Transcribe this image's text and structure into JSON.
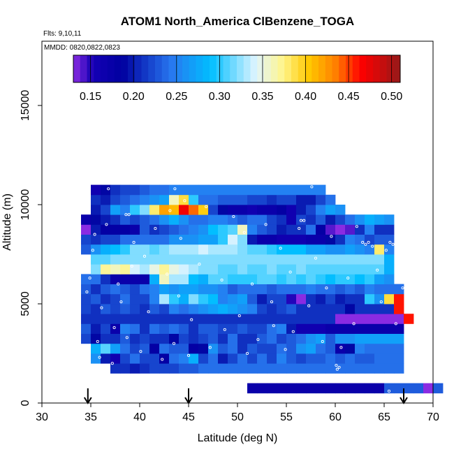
{
  "chart_data": {
    "type": "heatmap",
    "title": "ATOM1 North_America ClBenzene_TOGA",
    "flights_label": "Flts: 9,10,11",
    "dates_label": "MMDD: 0820,0822,0823",
    "xlabel": "Latitude (deg N)",
    "ylabel": "Altitude (m)",
    "xlim": [
      30,
      70
    ],
    "ylim": [
      0,
      18000
    ],
    "x_ticks": [
      "30",
      "35",
      "40",
      "45",
      "50",
      "55",
      "60",
      "65",
      "70"
    ],
    "y_ticks": [
      "0",
      "5000",
      "10000",
      "15000"
    ],
    "colorbar": {
      "range": [
        0.13,
        0.51
      ],
      "ticks": [
        "0.15",
        "0.20",
        "0.25",
        "0.30",
        "0.35",
        "0.40",
        "0.45",
        "0.50"
      ]
    },
    "grid": false,
    "cell_width_deg": 1,
    "cell_height_m": 500,
    "rows": [
      {
        "alt": 750,
        "lat_start": 51,
        "values": [
          0.17,
          0.17,
          0.17,
          0.17,
          0.17,
          0.17,
          0.17,
          0.17,
          0.17,
          0.17,
          0.17,
          0.17,
          0.17,
          0.17,
          0.23,
          0.23,
          0.23,
          0.23,
          0.13,
          0.23
        ]
      },
      {
        "alt": 1750,
        "lat_start": 37,
        "values": [
          0.21,
          0.21,
          0.2,
          0.21,
          0.22,
          0.22,
          0.22,
          0.23,
          0.23,
          0.24,
          0.24,
          0.24,
          0.24,
          0.24,
          0.24,
          0.24,
          0.24,
          0.24,
          0.24,
          0.24,
          0.24,
          0.24,
          0.24,
          0.24,
          0.24,
          0.24,
          0.24,
          0.24,
          0.24,
          0.24
        ]
      },
      {
        "alt": 2250,
        "lat_start": 35,
        "values": [
          0.26,
          0.2,
          0.16,
          0.22,
          0.24,
          0.22,
          0.22,
          0.18,
          0.24,
          0.25,
          0.28,
          0.22,
          0.24,
          0.2,
          0.22,
          0.24,
          0.22,
          0.24,
          0.22,
          0.25,
          0.23,
          0.22,
          0.23,
          0.23,
          0.24,
          0.23,
          0.24,
          0.23,
          0.23,
          0.24,
          0.24,
          0.24
        ]
      },
      {
        "alt": 2750,
        "lat_start": 35,
        "values": [
          0.28,
          0.31,
          0.27,
          0.24,
          0.22,
          0.23,
          0.18,
          0.24,
          0.23,
          0.23,
          0.18,
          0.19,
          0.26,
          0.23,
          0.24,
          0.21,
          0.23,
          0.22,
          0.22,
          0.24,
          0.23,
          0.26,
          0.27,
          0.24,
          0.23,
          0.17,
          0.19,
          0.25,
          0.24,
          0.24,
          0.24,
          0.24
        ]
      },
      {
        "alt": 3250,
        "lat_start": 34,
        "values": [
          0.22,
          0.19,
          0.21,
          0.21,
          0.23,
          0.21,
          0.22,
          0.21,
          0.21,
          0.19,
          0.22,
          0.21,
          0.22,
          0.23,
          0.21,
          0.24,
          0.21,
          0.21,
          0.23,
          0.24,
          0.22,
          0.23,
          0.24,
          0.26,
          0.27,
          0.23,
          0.26,
          0.26,
          0.27,
          0.27,
          0.27,
          0.27,
          0.27
        ]
      },
      {
        "alt": 3750,
        "lat_start": 34,
        "values": [
          0.23,
          0.2,
          0.22,
          0.17,
          0.25,
          0.24,
          0.21,
          0.24,
          0.23,
          0.24,
          0.23,
          0.21,
          0.23,
          0.23,
          0.22,
          0.22,
          0.23,
          0.22,
          0.22,
          0.24,
          0.25,
          0.2,
          0.16,
          0.16,
          0.16,
          0.17,
          0.17,
          0.17,
          0.17,
          0.17,
          0.17,
          0.17,
          0.17
        ]
      },
      {
        "alt": 4250,
        "lat_start": 34,
        "values": [
          0.21,
          0.21,
          0.21,
          0.21,
          0.21,
          0.21,
          0.21,
          0.21,
          0.21,
          0.21,
          0.21,
          0.21,
          0.21,
          0.21,
          0.21,
          0.21,
          0.21,
          0.21,
          0.21,
          0.21,
          0.21,
          0.21,
          0.21,
          0.21,
          0.21,
          0.21,
          0.13,
          0.13,
          0.13,
          0.13,
          0.13,
          0.13,
          0.13,
          0.46
        ]
      },
      {
        "alt": 4750,
        "lat_start": 34,
        "values": [
          0.22,
          0.21,
          0.23,
          0.22,
          0.23,
          0.22,
          0.21,
          0.23,
          0.22,
          0.25,
          0.24,
          0.25,
          0.26,
          0.27,
          0.28,
          0.27,
          0.26,
          0.25,
          0.22,
          0.21,
          0.22,
          0.23,
          0.21,
          0.21,
          0.21,
          0.21,
          0.21,
          0.19,
          0.21,
          0.21,
          0.21,
          0.21,
          0.46
        ]
      },
      {
        "alt": 5250,
        "lat_start": 34,
        "values": [
          0.22,
          0.23,
          0.21,
          0.22,
          0.24,
          0.22,
          0.22,
          0.25,
          0.33,
          0.3,
          0.28,
          0.32,
          0.3,
          0.29,
          0.25,
          0.26,
          0.27,
          0.23,
          0.2,
          0.22,
          0.22,
          0.15,
          0.13,
          0.21,
          0.2,
          0.22,
          0.2,
          0.21,
          0.21,
          0.3,
          0.26,
          0.39,
          0.46
        ]
      },
      {
        "alt": 5750,
        "lat_start": 34,
        "values": [
          0.23,
          0.21,
          0.23,
          0.24,
          0.23,
          0.22,
          0.24,
          0.25,
          0.27,
          0.26,
          0.27,
          0.27,
          0.26,
          0.26,
          0.25,
          0.23,
          0.24,
          0.24,
          0.24,
          0.23,
          0.24,
          0.24,
          0.24,
          0.25,
          0.24,
          0.24,
          0.23,
          0.24,
          0.23,
          0.25,
          0.24,
          0.24,
          0.24
        ]
      },
      {
        "alt": 6250,
        "lat_start": 34,
        "values": [
          0.24,
          0.24,
          0.21,
          0.17,
          0.17,
          0.17,
          0.17,
          0.28,
          0.36,
          0.33,
          0.33,
          0.29,
          0.28,
          0.31,
          0.31,
          0.3,
          0.3,
          0.3,
          0.31,
          0.31,
          0.3,
          0.31,
          0.3,
          0.31,
          0.3,
          0.29,
          0.3,
          0.3,
          0.29,
          0.3,
          0.27,
          0.26
        ]
      },
      {
        "alt": 6750,
        "lat_start": 35,
        "values": [
          0.32,
          0.37,
          0.36,
          0.37,
          0.34,
          0.33,
          0.35,
          0.37,
          0.35,
          0.34,
          0.33,
          0.32,
          0.32,
          0.31,
          0.31,
          0.32,
          0.31,
          0.31,
          0.32,
          0.31,
          0.31,
          0.32,
          0.31,
          0.31,
          0.31,
          0.31,
          0.31,
          0.31,
          0.31,
          0.31,
          0.28
        ]
      },
      {
        "alt": 7250,
        "lat_start": 35,
        "values": [
          0.31,
          0.31,
          0.32,
          0.32,
          0.32,
          0.32,
          0.32,
          0.32,
          0.32,
          0.32,
          0.32,
          0.32,
          0.32,
          0.32,
          0.32,
          0.32,
          0.32,
          0.32,
          0.32,
          0.32,
          0.32,
          0.32,
          0.32,
          0.32,
          0.32,
          0.32,
          0.32,
          0.32,
          0.32,
          0.32,
          0.28
        ]
      },
      {
        "alt": 7750,
        "lat_start": 34,
        "values": [
          0.23,
          0.26,
          0.28,
          0.29,
          0.3,
          0.32,
          0.32,
          0.31,
          0.32,
          0.33,
          0.33,
          0.33,
          0.34,
          0.33,
          0.33,
          0.33,
          0.32,
          0.31,
          0.31,
          0.3,
          0.29,
          0.29,
          0.29,
          0.27,
          0.27,
          0.26,
          0.26,
          0.27,
          0.26,
          0.25,
          0.38,
          0.25
        ]
      },
      {
        "alt": 8250,
        "lat_start": 34,
        "values": [
          0.22,
          0.21,
          0.22,
          0.22,
          0.24,
          0.24,
          0.24,
          0.24,
          0.24,
          0.26,
          0.26,
          0.26,
          0.27,
          0.27,
          0.3,
          0.34,
          0.32,
          0.2,
          0.17,
          0.17,
          0.16,
          0.16,
          0.16,
          0.17,
          0.17,
          0.19,
          0.21,
          0.25,
          0.24,
          0.22,
          0.23,
          0.23
        ]
      },
      {
        "alt": 8750,
        "lat_start": 34,
        "values": [
          0.13,
          0.2,
          0.18,
          0.18,
          0.18,
          0.17,
          0.23,
          0.21,
          0.22,
          0.23,
          0.24,
          0.25,
          0.26,
          0.29,
          0.3,
          0.31,
          0.36,
          0.25,
          0.23,
          0.22,
          0.2,
          0.21,
          0.21,
          0.24,
          0.18,
          0.14,
          0.13,
          0.14,
          0.21,
          0.25,
          0.21,
          0.21
        ]
      },
      {
        "alt": 9250,
        "lat_start": 34,
        "values": [
          0.17,
          0.19,
          0.2,
          0.21,
          0.23,
          0.22,
          0.23,
          0.24,
          0.26,
          0.28,
          0.26,
          0.24,
          0.24,
          0.25,
          0.25,
          0.24,
          0.23,
          0.24,
          0.24,
          0.22,
          0.21,
          0.16,
          0.22,
          0.21,
          0.23,
          0.2,
          0.22,
          0.24,
          0.26,
          0.28,
          0.27,
          0.26
        ]
      },
      {
        "alt": 9750,
        "lat_start": 35,
        "values": [
          0.2,
          0.22,
          0.27,
          0.25,
          0.3,
          0.32,
          0.38,
          0.42,
          0.41,
          0.47,
          0.44,
          0.4,
          0.22,
          0.19,
          0.17,
          0.17,
          0.16,
          0.17,
          0.17,
          0.18,
          0.16,
          0.2,
          0.22,
          0.25,
          0.27,
          0.26
        ]
      },
      {
        "alt": 10250,
        "lat_start": 35,
        "values": [
          0.21,
          0.2,
          0.22,
          0.23,
          0.24,
          0.25,
          0.26,
          0.27,
          0.36,
          0.39,
          0.3,
          0.24,
          0.24,
          0.23,
          0.23,
          0.23,
          0.22,
          0.22,
          0.21,
          0.22,
          0.22,
          0.2,
          0.2,
          0.22,
          0.24
        ]
      },
      {
        "alt": 10750,
        "lat_start": 35,
        "values": [
          0.16,
          0.19,
          0.21,
          0.22,
          0.22,
          0.23,
          0.24,
          0.24,
          0.25,
          0.25,
          0.25,
          0.25,
          0.25,
          0.25,
          0.25,
          0.25,
          0.25,
          0.25,
          0.25,
          0.25,
          0.25,
          0.25,
          0.25,
          0.25
        ]
      }
    ],
    "sample_points": [
      [
        34.6,
        5600
      ],
      [
        34.9,
        6300
      ],
      [
        35.2,
        7700
      ],
      [
        35.4,
        8500
      ],
      [
        35.7,
        3100
      ],
      [
        35.9,
        2300
      ],
      [
        36.1,
        4800
      ],
      [
        36.6,
        9000
      ],
      [
        36.8,
        10800
      ],
      [
        37.2,
        2000
      ],
      [
        37.4,
        3800
      ],
      [
        37.8,
        6000
      ],
      [
        38.1,
        5100
      ],
      [
        38.6,
        9500
      ],
      [
        38.7,
        3300
      ],
      [
        39.2,
        6900
      ],
      [
        39.4,
        8100
      ],
      [
        40.1,
        2600
      ],
      [
        40.5,
        7400
      ],
      [
        40.9,
        4600
      ],
      [
        41.6,
        8800
      ],
      [
        42.3,
        2200
      ],
      [
        42.8,
        6500
      ],
      [
        43.1,
        9700
      ],
      [
        43.5,
        3000
      ],
      [
        43.6,
        10800
      ],
      [
        44.0,
        5400
      ],
      [
        44.2,
        8300
      ],
      [
        45.0,
        2400
      ],
      [
        45.3,
        4200
      ],
      [
        46.1,
        7000
      ],
      [
        46.8,
        9900
      ],
      [
        47.2,
        2800
      ],
      [
        48.4,
        6200
      ],
      [
        48.7,
        3700
      ],
      [
        49.6,
        9400
      ],
      [
        50.2,
        4400
      ],
      [
        50.7,
        8600
      ],
      [
        51.0,
        2500
      ],
      [
        51.5,
        6000
      ],
      [
        52.1,
        3200
      ],
      [
        52.9,
        9000
      ],
      [
        53.5,
        5100
      ],
      [
        54.4,
        7800
      ],
      [
        54.9,
        2700
      ],
      [
        55.4,
        6600
      ],
      [
        55.7,
        3600
      ],
      [
        56.3,
        8800
      ],
      [
        56.5,
        9200
      ],
      [
        56.8,
        9200
      ],
      [
        57.3,
        4900
      ],
      [
        57.6,
        10900
      ],
      [
        58.0,
        7300
      ],
      [
        58.7,
        3100
      ],
      [
        59.1,
        5800
      ],
      [
        59.6,
        8400
      ],
      [
        60.1,
        1900
      ],
      [
        60.2,
        1700
      ],
      [
        60.4,
        1800
      ],
      [
        60.6,
        2800
      ],
      [
        61.3,
        6300
      ],
      [
        61.9,
        4000
      ],
      [
        62.2,
        8900
      ],
      [
        62.8,
        8100
      ],
      [
        63.1,
        8000
      ],
      [
        63.4,
        8100
      ],
      [
        63.8,
        7900
      ],
      [
        64.3,
        6700
      ],
      [
        64.7,
        5100
      ],
      [
        65.2,
        7700
      ],
      [
        65.6,
        8100
      ],
      [
        65.9,
        8000
      ],
      [
        66.2,
        4000
      ],
      [
        66.4,
        8000
      ],
      [
        66.8,
        1300
      ],
      [
        65.5,
        600
      ],
      [
        66.9,
        5800
      ],
      [
        38.9,
        9500
      ],
      [
        44.6,
        10200
      ],
      [
        53.7,
        3900
      ]
    ],
    "arrows_lat": [
      34.7,
      45.0,
      67.0
    ]
  }
}
